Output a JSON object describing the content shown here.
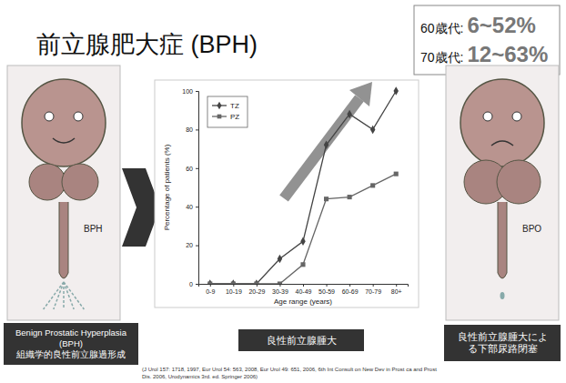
{
  "slide": {
    "title": "前立腺肥大症 (BPH)",
    "stats": [
      {
        "label": "60歳代:",
        "value": "6~52%"
      },
      {
        "label": "70歳代:",
        "value": "12~63%"
      }
    ],
    "image_labels": [
      "BPH",
      "BPO"
    ],
    "captions": [
      {
        "lines": [
          "Benign Prostatic Hyperplasia",
          "(BPH)",
          "組織学的良性前立腺過形成"
        ]
      },
      {
        "lines": [
          "良性前立腺腫大"
        ]
      },
      {
        "lines": [
          "良性前立腺腫大によ",
          "る下部尿路閉塞"
        ]
      }
    ],
    "citation": [
      "(J Urol 157: 1718, 1997, Eur Urol 54: 563, 2008, Eur Urol 49: 651, 2006, 6th Int Consult on New Dev in Prost ca and Prost",
      "Dis. 2006, Urodynamics 3rd. ed. Springer 2006)"
    ]
  },
  "chart_data": {
    "type": "line",
    "x_label": "Age range (years)",
    "y_label": "Percentage of patients (%)",
    "categories": [
      "0-9",
      "10-19",
      "20-29",
      "30-39",
      "40-49",
      "50-59",
      "60-69",
      "70-79",
      "80+"
    ],
    "series": [
      {
        "name": "TZ",
        "color": "#444444",
        "marker": "diamond",
        "values": [
          0,
          0,
          0,
          13,
          22,
          72,
          88,
          80,
          100
        ]
      },
      {
        "name": "PZ",
        "color": "#666666",
        "marker": "square",
        "values": [
          0,
          0,
          0,
          0,
          10,
          44,
          45,
          51,
          57
        ]
      }
    ],
    "ylim": [
      0,
      100
    ],
    "yticks": [
      0,
      20,
      40,
      60,
      80,
      100
    ],
    "grid": false,
    "legend": "upper left"
  }
}
